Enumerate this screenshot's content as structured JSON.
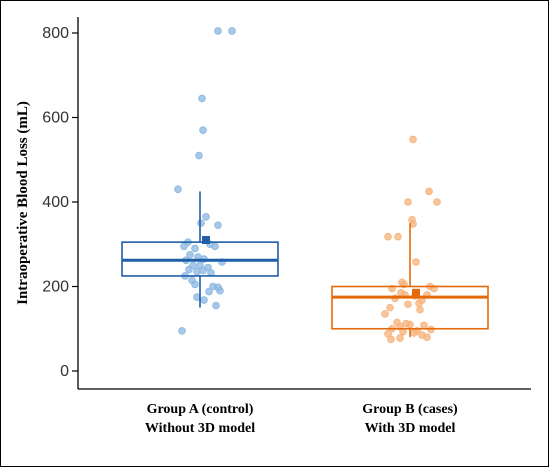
{
  "chart_data": {
    "type": "boxplot",
    "ylabel": "Intraoperative Blood Loss (mL)",
    "ylim": [
      -20,
      830
    ],
    "yticks": [
      0,
      200,
      400,
      600,
      800
    ],
    "grid": false,
    "categories": [
      {
        "line1": "Group A (control)",
        "line2": "Without 3D model"
      },
      {
        "line1": "Group B (cases)",
        "line2": "With 3D model"
      }
    ],
    "groups": [
      {
        "color": "#1f5fa8",
        "point_color": "#8ab6e0",
        "box": {
          "whisker_low": 150,
          "q1": 225,
          "median": 262,
          "q3": 305,
          "whisker_high": 425,
          "mean": 310
        },
        "points": [
          [
            0.18,
            805
          ],
          [
            0.32,
            805
          ],
          [
            0.02,
            645
          ],
          [
            0.03,
            570
          ],
          [
            -0.01,
            510
          ],
          [
            -0.22,
            430
          ],
          [
            0.06,
            365
          ],
          [
            0.01,
            350
          ],
          [
            0.18,
            345
          ],
          [
            -0.12,
            305
          ],
          [
            0.06,
            310
          ],
          [
            0.1,
            300
          ],
          [
            0.15,
            295
          ],
          [
            -0.05,
            290
          ],
          [
            -0.16,
            295
          ],
          [
            -0.1,
            275
          ],
          [
            -0.02,
            270
          ],
          [
            0.04,
            265
          ],
          [
            -0.14,
            262
          ],
          [
            0.22,
            258
          ],
          [
            -0.07,
            250
          ],
          [
            0.0,
            250
          ],
          [
            0.08,
            245
          ],
          [
            -0.11,
            240
          ],
          [
            0.03,
            238
          ],
          [
            -0.03,
            235
          ],
          [
            0.11,
            232
          ],
          [
            -0.15,
            225
          ],
          [
            -0.08,
            215
          ],
          [
            -0.05,
            205
          ],
          [
            0.13,
            200
          ],
          [
            0.18,
            198
          ],
          [
            0.2,
            190
          ],
          [
            0.09,
            188
          ],
          [
            -0.03,
            175
          ],
          [
            0.04,
            168
          ],
          [
            0.16,
            155
          ],
          [
            -0.18,
            95
          ]
        ]
      },
      {
        "color": "#e46a0c",
        "point_color": "#f6b27a",
        "box": {
          "whisker_low": 80,
          "q1": 100,
          "median": 175,
          "q3": 200,
          "whisker_high": 350,
          "mean": 185
        },
        "points": [
          [
            0.03,
            548
          ],
          [
            0.19,
            425
          ],
          [
            0.27,
            400
          ],
          [
            -0.02,
            400
          ],
          [
            0.02,
            358
          ],
          [
            0.03,
            348
          ],
          [
            -0.12,
            318
          ],
          [
            -0.22,
            318
          ],
          [
            0.06,
            258
          ],
          [
            -0.08,
            210
          ],
          [
            -0.06,
            205
          ],
          [
            0.2,
            200
          ],
          [
            -0.18,
            195
          ],
          [
            0.24,
            195
          ],
          [
            -0.09,
            185
          ],
          [
            0.17,
            180
          ],
          [
            -0.05,
            180
          ],
          [
            0.05,
            178
          ],
          [
            -0.15,
            172
          ],
          [
            0.12,
            168
          ],
          [
            0.09,
            160
          ],
          [
            -0.02,
            158
          ],
          [
            -0.2,
            150
          ],
          [
            0.1,
            145
          ],
          [
            -0.25,
            135
          ],
          [
            -0.13,
            115
          ],
          [
            -0.04,
            112
          ],
          [
            0.0,
            110
          ],
          [
            0.14,
            108
          ],
          [
            -0.1,
            105
          ],
          [
            -0.18,
            100
          ],
          [
            0.21,
            98
          ],
          [
            0.07,
            95
          ],
          [
            -0.07,
            93
          ],
          [
            0.04,
            90
          ],
          [
            -0.22,
            88
          ],
          [
            0.12,
            85
          ],
          [
            0.17,
            80
          ],
          [
            -0.1,
            78
          ],
          [
            -0.19,
            75
          ]
        ]
      }
    ]
  }
}
